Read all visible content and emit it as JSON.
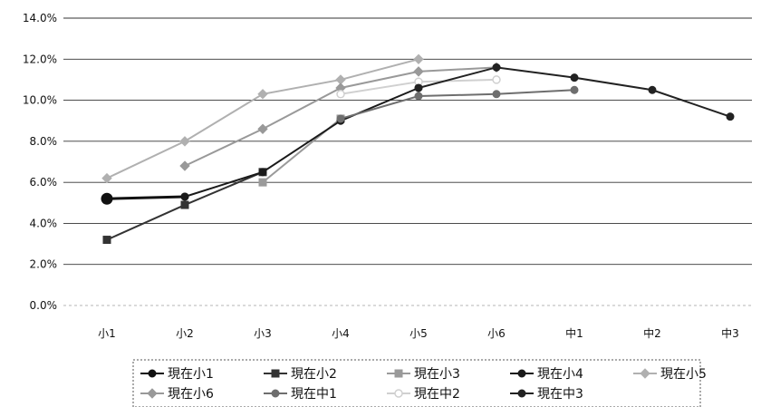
{
  "chart_data": {
    "type": "line",
    "title": "",
    "xlabel": "",
    "ylabel": "",
    "categories": [
      "小1",
      "小2",
      "小3",
      "小4",
      "小5",
      "小6",
      "中1",
      "中2",
      "中3"
    ],
    "ylim": [
      0,
      14
    ],
    "y_ticks": [
      "0.0%",
      "2.0%",
      "4.0%",
      "6.0%",
      "8.0%",
      "10.0%",
      "12.0%",
      "14.0%"
    ],
    "grid": "horizontal",
    "legend_position": "bottom",
    "series": [
      {
        "name": "現在小1",
        "color": "#111111",
        "marker": "circle",
        "values": [
          5.2,
          5.3,
          null,
          null,
          null,
          null,
          null,
          null,
          null
        ]
      },
      {
        "name": "現在小2",
        "color": "#333333",
        "marker": "square",
        "values": [
          3.2,
          4.9,
          6.5,
          null,
          null,
          null,
          null,
          null,
          null
        ]
      },
      {
        "name": "現在小3",
        "color": "#9a9a9a",
        "marker": "square",
        "values": [
          null,
          null,
          6.0,
          9.1,
          null,
          null,
          null,
          null,
          null
        ]
      },
      {
        "name": "現在小4",
        "color": "#1a1a1a",
        "marker": "circle",
        "values": [
          null,
          5.3,
          6.5,
          9.0,
          10.6,
          null,
          null,
          null,
          null
        ]
      },
      {
        "name": "現在小5",
        "color": "#b0b0b0",
        "marker": "diamond",
        "values": [
          6.2,
          8.0,
          10.3,
          11.0,
          12.0,
          null,
          null,
          null,
          null
        ]
      },
      {
        "name": "現在小6",
        "color": "#999999",
        "marker": "diamond",
        "values": [
          null,
          6.8,
          8.6,
          10.6,
          11.4,
          11.6,
          null,
          null,
          null
        ]
      },
      {
        "name": "現在中1",
        "color": "#6e6e6e",
        "marker": "circle",
        "values": [
          null,
          null,
          null,
          9.1,
          10.2,
          10.3,
          10.5,
          null,
          null
        ]
      },
      {
        "name": "現在中2",
        "color": "#d0d0d0",
        "marker": "circle-open",
        "values": [
          null,
          null,
          null,
          10.3,
          10.9,
          11.0,
          null,
          null,
          null
        ]
      },
      {
        "name": "現在中3",
        "color": "#222222",
        "marker": "circle",
        "values": [
          null,
          null,
          null,
          null,
          10.6,
          11.6,
          11.1,
          10.5,
          9.2
        ]
      }
    ]
  }
}
